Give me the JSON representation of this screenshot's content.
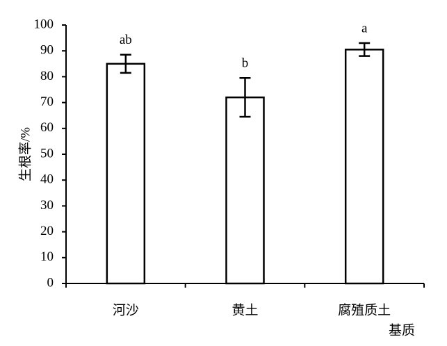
{
  "chart_data": {
    "type": "bar",
    "categories": [
      "河沙",
      "黄土",
      "腐殖质土"
    ],
    "values": [
      85,
      72,
      90.5
    ],
    "errors": [
      3.5,
      7.5,
      2.5
    ],
    "annotations": [
      "ab",
      "b",
      "a"
    ],
    "color": "#ffffff",
    "y_label": "生根率/%",
    "x_label": "基质",
    "ylim": [
      0,
      100
    ],
    "yticks": [
      0,
      10,
      20,
      30,
      40,
      50,
      60,
      70,
      80,
      90,
      100
    ],
    "grid": false
  }
}
